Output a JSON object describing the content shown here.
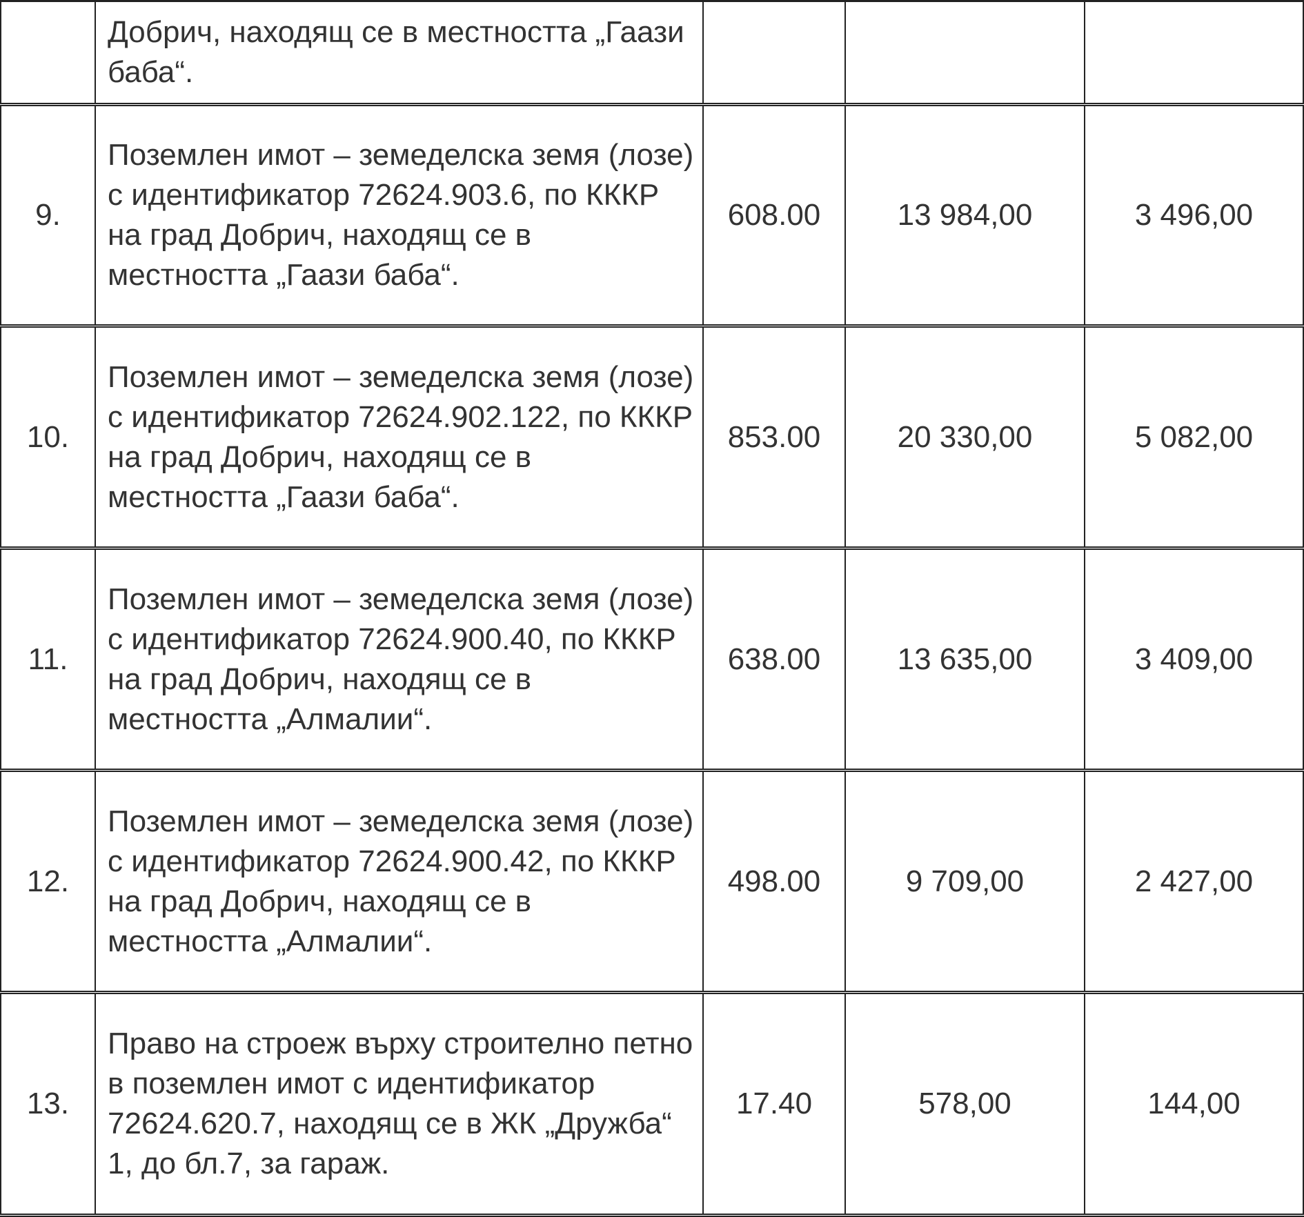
{
  "rows": [
    {
      "no": "",
      "description": "Добрич, находящ се в местността „Гаази баба“.",
      "area": "",
      "value1": "",
      "value2": ""
    },
    {
      "no": "9.",
      "description": "Поземлен имот – земеделска земя (лозе) с идентификатор 72624.903.6, по КККР на град Добрич, находящ се в местността „Гаази баба“.",
      "area": "608.00",
      "value1": "13 984,00",
      "value2": "3 496,00"
    },
    {
      "no": "10.",
      "description": "Поземлен имот – земеделска земя (лозе) с идентификатор 72624.902.122, по КККР на град Добрич, находящ се в местността „Гаази баба“.",
      "area": "853.00",
      "value1": "20 330,00",
      "value2": "5 082,00"
    },
    {
      "no": "11.",
      "description": "Поземлен имот – земеделска земя (лозе) с идентификатор 72624.900.40, по КККР на град Добрич, находящ се в местността „Алмалии“.",
      "area": "638.00",
      "value1": "13 635,00",
      "value2": "3 409,00"
    },
    {
      "no": "12.",
      "description": "Поземлен имот – земеделска земя (лозе) с идентификатор 72624.900.42, по КККР на град Добрич, находящ се в местността „Алмалии“.",
      "area": "498.00",
      "value1": "9 709,00",
      "value2": "2 427,00"
    },
    {
      "no": "13.",
      "description": "Право на строеж върху строително петно в поземлен имот с идентификатор 72624.620.7, находящ се в ЖК „Дружба“ 1, до бл.7, за гараж.",
      "area": "17.40",
      "value1": "578,00",
      "value2": "144,00"
    }
  ]
}
